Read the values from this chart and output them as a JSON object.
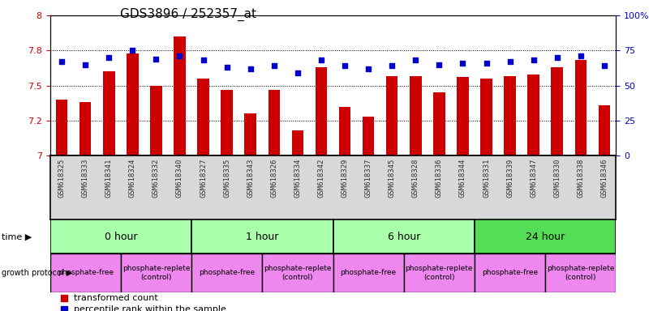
{
  "title": "GDS3896 / 252357_at",
  "samples": [
    "GSM618325",
    "GSM618333",
    "GSM618341",
    "GSM618324",
    "GSM618332",
    "GSM618340",
    "GSM618327",
    "GSM618335",
    "GSM618343",
    "GSM618326",
    "GSM618334",
    "GSM618342",
    "GSM618329",
    "GSM618337",
    "GSM618345",
    "GSM618328",
    "GSM618336",
    "GSM618344",
    "GSM618331",
    "GSM618339",
    "GSM618347",
    "GSM618330",
    "GSM618338",
    "GSM618346"
  ],
  "transformed_count": [
    7.4,
    7.38,
    7.6,
    7.73,
    7.5,
    7.85,
    7.55,
    7.47,
    7.3,
    7.47,
    7.18,
    7.63,
    7.35,
    7.28,
    7.57,
    7.57,
    7.45,
    7.56,
    7.55,
    7.57,
    7.58,
    7.63,
    7.68,
    7.36
  ],
  "percentile_rank": [
    67,
    65,
    70,
    75,
    69,
    71,
    68,
    63,
    62,
    64,
    59,
    68,
    64,
    62,
    64,
    68,
    65,
    66,
    66,
    67,
    68,
    70,
    71,
    64
  ],
  "ylim_left": [
    7.0,
    8.0
  ],
  "ylim_right": [
    0,
    100
  ],
  "yticks_left": [
    7.0,
    7.25,
    7.5,
    7.75,
    8.0
  ],
  "yticks_right": [
    0,
    25,
    50,
    75,
    100
  ],
  "bar_color": "#cc0000",
  "dot_color": "#0000cc",
  "time_groups": [
    {
      "label": "0 hour",
      "start": 0,
      "end": 6,
      "color": "#aaffaa"
    },
    {
      "label": "1 hour",
      "start": 6,
      "end": 12,
      "color": "#aaffaa"
    },
    {
      "label": "6 hour",
      "start": 12,
      "end": 18,
      "color": "#aaffaa"
    },
    {
      "label": "24 hour",
      "start": 18,
      "end": 24,
      "color": "#55dd55"
    }
  ],
  "protocol_groups": [
    {
      "label": "phosphate-free",
      "start": 0,
      "end": 3,
      "color": "#ee88ee"
    },
    {
      "label": "phosphate-replete\n(control)",
      "start": 3,
      "end": 6,
      "color": "#ee88ee"
    },
    {
      "label": "phosphate-free",
      "start": 6,
      "end": 9,
      "color": "#ee88ee"
    },
    {
      "label": "phosphate-replete\n(control)",
      "start": 9,
      "end": 12,
      "color": "#ee88ee"
    },
    {
      "label": "phosphate-free",
      "start": 12,
      "end": 15,
      "color": "#ee88ee"
    },
    {
      "label": "phosphate-replete\n(control)",
      "start": 15,
      "end": 18,
      "color": "#ee88ee"
    },
    {
      "label": "phosphate-free",
      "start": 18,
      "end": 21,
      "color": "#ee88ee"
    },
    {
      "label": "phosphate-replete\n(control)",
      "start": 21,
      "end": 24,
      "color": "#ee88ee"
    }
  ],
  "tick_label_color": "#333333",
  "background_color": "#ffffff",
  "left_axis_color": "#cc0000",
  "right_axis_color": "#0000cc",
  "xtick_bg": "#d8d8d8",
  "title_fontsize": 11,
  "bar_width": 0.5
}
